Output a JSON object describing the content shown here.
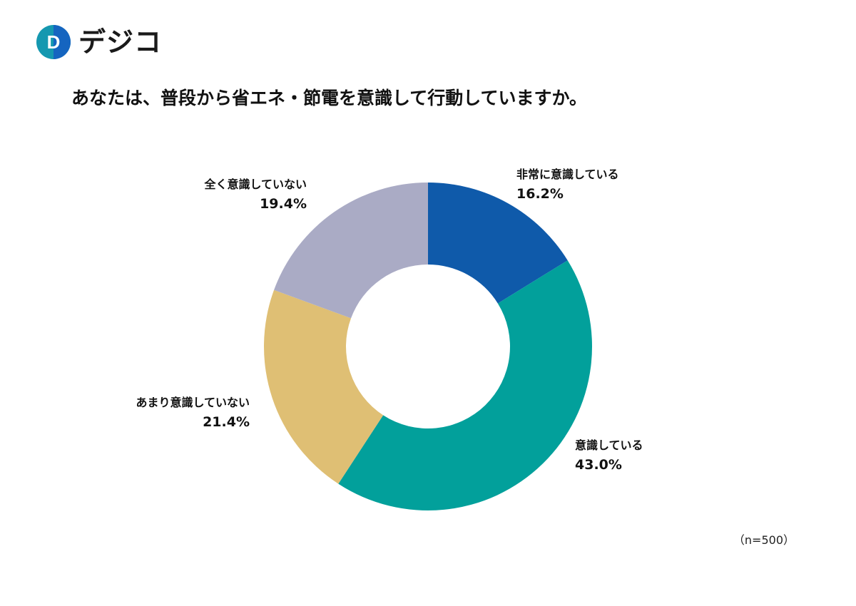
{
  "brand": {
    "name": "デジコ",
    "logo_letter": "D",
    "colors": {
      "teal": "#1598b0",
      "blue": "#1565c0"
    }
  },
  "question": "あなたは、普段から省エネ・節電を意識して行動していますか。",
  "sample_size": "（n=500）",
  "chart_data": {
    "type": "donut",
    "title": "あなたは、普段から省エネ・節電を意識して行動していますか。",
    "unit": "%",
    "categories": [
      "非常に意識している",
      "意識している",
      "あまり意識していない",
      "全く意識していない"
    ],
    "values": [
      16.2,
      43.0,
      21.4,
      19.4
    ],
    "value_labels": [
      "16.2%",
      "43.0%",
      "21.4%",
      "19.4%"
    ],
    "colors": [
      "#0f5aaa",
      "#02a09b",
      "#dfbf74",
      "#aaabc5"
    ],
    "start_angle_deg": 0,
    "direction": "clockwise",
    "legend": "none (labels placed beside slices)"
  }
}
